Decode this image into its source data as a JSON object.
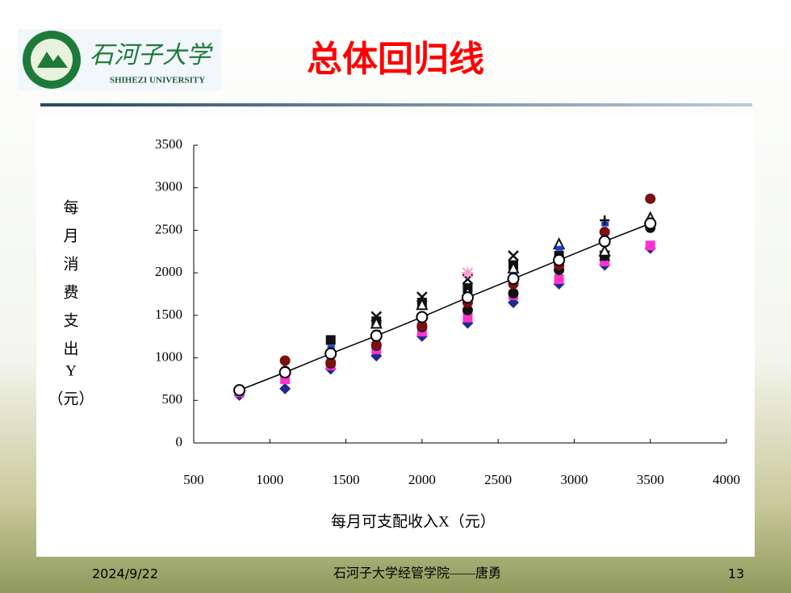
{
  "header": {
    "logo_text": "石河子大学",
    "logo_subtext": "SHIHEZI UNIVERSITY",
    "title": "总体回归线"
  },
  "chart_data": {
    "type": "scatter",
    "y_label_lines": [
      "每",
      "月",
      "消",
      "费",
      "支",
      "出",
      "Y",
      "（元）"
    ],
    "x_label": "每月可支配收入X（元）",
    "x": [
      800,
      1100,
      1400,
      1700,
      2000,
      2300,
      2600,
      2900,
      3200,
      3500
    ],
    "xlim": [
      500,
      4000
    ],
    "xticks": [
      500,
      1000,
      1500,
      2000,
      2500,
      3000,
      3500,
      4000
    ],
    "ylim": [
      0,
      3500
    ],
    "yticks": [
      0,
      500,
      1000,
      1500,
      2000,
      2500,
      3000,
      3500
    ],
    "series": [
      {
        "color": "#1f2a8a",
        "marker": "diamond",
        "values": [
          561,
          638,
          869,
          1023,
          1254,
          1408,
          1650,
          1870,
          2090,
          2288
        ]
      },
      {
        "color": "#ff33cc",
        "marker": "square",
        "values": [
          594,
          748,
          913,
          1100,
          1309,
          1474,
          1738,
          1925,
          2134,
          2321
        ]
      },
      {
        "color": "#111111",
        "marker": "circle",
        "values": [
          null,
          847,
          935,
          1144,
          1364,
          1562,
          1760,
          2035,
          2200,
          2530
        ]
      },
      {
        "color": "#7a1010",
        "marker": "circle",
        "values": [
          null,
          968,
          946,
          1155,
          1380,
          1650,
          1870,
          2090,
          2480,
          2871
        ]
      },
      {
        "color": "#111111",
        "marker": "square",
        "values": [
          null,
          null,
          1210,
          1430,
          1650,
          1820,
          2090,
          2200,
          null,
          null
        ]
      },
      {
        "color": "#111111",
        "marker": "x",
        "values": [
          null,
          null,
          null,
          1485,
          1716,
          1925,
          2200,
          null,
          2200,
          null
        ]
      },
      {
        "color": "#111111",
        "marker": "triangle",
        "values": [
          null,
          null,
          null,
          1400,
          1620,
          1760,
          2050,
          2332,
          2250,
          2640
        ]
      },
      {
        "color": "#1a3fd0",
        "marker": "dash",
        "values": [
          null,
          null,
          1122,
          1300,
          1500,
          1716,
          1980,
          2288,
          2574,
          null
        ]
      },
      {
        "color": "#ff99cc",
        "marker": "asterisk",
        "values": [
          null,
          null,
          null,
          null,
          null,
          2000,
          null,
          null,
          null,
          null
        ]
      },
      {
        "color": "#111111",
        "marker": "plus",
        "values": [
          null,
          null,
          null,
          null,
          null,
          null,
          null,
          null,
          2618,
          null
        ]
      },
      {
        "color": "#000000",
        "marker": "open-circle",
        "line": true,
        "values": [
          620,
          830,
          1050,
          1260,
          1480,
          1710,
          1930,
          2150,
          2370,
          2580
        ]
      }
    ]
  },
  "footer": {
    "date": "2024/9/22",
    "author": "石河子大学经管学院——唐勇",
    "page": "13"
  }
}
